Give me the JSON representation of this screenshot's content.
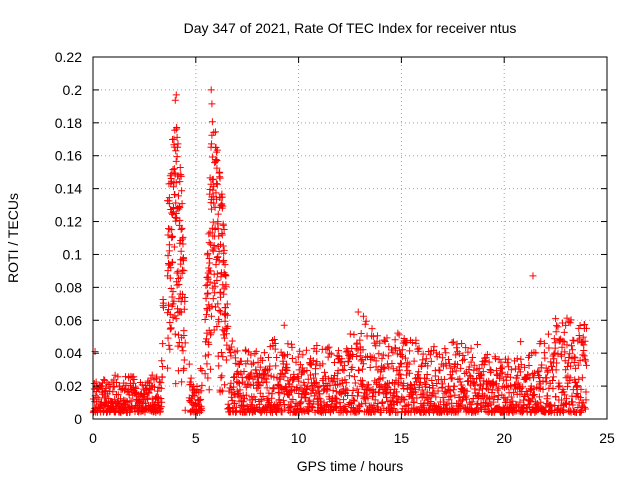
{
  "chart_data": {
    "type": "scatter",
    "title": "Day 347 of 2021, Rate Of TEC Index for receiver ntus",
    "xlabel": "GPS time / hours",
    "ylabel": "ROTI / TECUs",
    "xlim": [
      0,
      25
    ],
    "ylim": [
      0,
      0.22
    ],
    "xticks": [
      0,
      5,
      10,
      15,
      20,
      25
    ],
    "xtick_labels": [
      "0",
      "5",
      "10",
      "15",
      "20",
      "25"
    ],
    "yticks": [
      0,
      0.02,
      0.04,
      0.06,
      0.08,
      0.1,
      0.12,
      0.14,
      0.16,
      0.18,
      0.2,
      0.22
    ],
    "ytick_labels": [
      "0",
      "0.02",
      "0.04",
      "0.06",
      "0.08",
      "0.1",
      "0.12",
      "0.14",
      "0.16",
      "0.18",
      "0.2",
      "0.22"
    ],
    "grid": true,
    "marker": "+",
    "marker_color": "#ff0000",
    "series": [
      {
        "name": "ROTI",
        "envelope_hours": [
          0,
          0.5,
          1,
          2,
          3,
          3.3,
          3.5,
          3.8,
          4.0,
          4.3,
          4.5,
          4.8,
          5.0,
          5.3,
          5.6,
          5.8,
          6.0,
          6.3,
          6.6,
          7,
          8,
          9,
          10,
          11,
          12,
          13,
          14,
          15,
          16,
          17,
          18,
          19,
          20,
          21,
          22,
          23,
          24
        ],
        "envelope_values": [
          0.02,
          0.022,
          0.025,
          0.024,
          0.025,
          0.03,
          0.12,
          0.16,
          0.195,
          0.15,
          0.06,
          0.02,
          0.015,
          0.035,
          0.11,
          0.2,
          0.17,
          0.14,
          0.05,
          0.04,
          0.04,
          0.05,
          0.04,
          0.045,
          0.04,
          0.062,
          0.052,
          0.05,
          0.045,
          0.045,
          0.045,
          0.045,
          0.035,
          0.035,
          0.05,
          0.06,
          0.055
        ],
        "baseline": 0.012,
        "points": [
          {
            "x": 0.1,
            "y": 0.041
          },
          {
            "x": 21.4,
            "y": 0.087
          },
          {
            "x": 22.5,
            "y": 0.061
          },
          {
            "x": 23.9,
            "y": 0.055
          },
          {
            "x": 20.8,
            "y": 0.047
          },
          {
            "x": 12.9,
            "y": 0.065
          },
          {
            "x": 9.3,
            "y": 0.057
          },
          {
            "x": 5.75,
            "y": 0.2
          },
          {
            "x": 4.05,
            "y": 0.197
          }
        ]
      }
    ]
  }
}
